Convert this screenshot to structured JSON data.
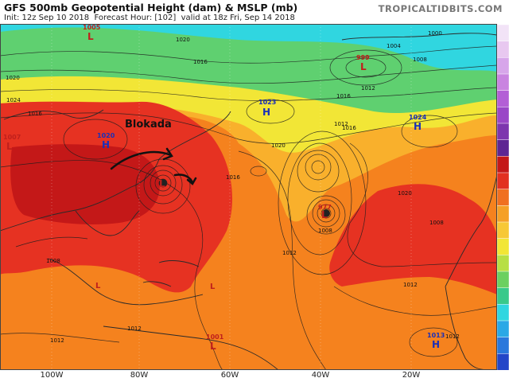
{
  "header": {
    "title": "GFS 500mb Geopotential Height (dam) & MSLP (mb)",
    "init_label": "Init: 12z Sep 10 2018",
    "forecast_label": "Forecast Hour: [102]",
    "valid_label": "valid at 18z Fri, Sep 14 2018",
    "brand": "TROPICALTIDBITS.COM"
  },
  "annotation": {
    "text": "Blokada"
  },
  "pressure_centers": [
    {
      "type": "H",
      "value": "1020"
    },
    {
      "type": "H",
      "value": "1023"
    },
    {
      "type": "H",
      "value": "1024"
    },
    {
      "type": "H",
      "value": "1013"
    },
    {
      "type": "L",
      "value": "999"
    },
    {
      "type": "L",
      "value": "1005"
    },
    {
      "type": "L",
      "value": "977"
    },
    {
      "type": "L",
      "value": "1001"
    },
    {
      "type": "L",
      "value": "1007"
    }
  ],
  "isobar_labels": [
    "1000",
    "1004",
    "1008",
    "1012",
    "1016",
    "1016",
    "1016",
    "1020",
    "1020",
    "1020",
    "1024",
    "1012",
    "1012",
    "1012",
    "1008",
    "1008",
    "1012",
    "1016",
    "1012",
    "1020",
    "1016",
    "1008",
    "1012"
  ],
  "longitude_labels": [
    "100W",
    "80W",
    "60W",
    "40W",
    "20W"
  ],
  "colors": {
    "cyan": "#30d6e0",
    "green": "#5fd070",
    "yellow": "#f2e636",
    "light_orange": "#f9b02c",
    "orange": "#f5821e",
    "red": "#e63222",
    "deep_red": "#c41818",
    "high_label": "#1a2fb8",
    "low_label": "#c0201c"
  },
  "colorbar_colors": [
    "#f2e3f7",
    "#e8c8f0",
    "#d7a6ea",
    "#c984e0",
    "#b35fd6",
    "#9a47c7",
    "#7d36ae",
    "#5e2693",
    "#c41818",
    "#e23020",
    "#f07020",
    "#f5a026",
    "#f7c836",
    "#f2e636",
    "#b7df44",
    "#6cd060",
    "#39c98a",
    "#30d6e0",
    "#2aa8e6",
    "#2a78dc",
    "#2446c8"
  ]
}
